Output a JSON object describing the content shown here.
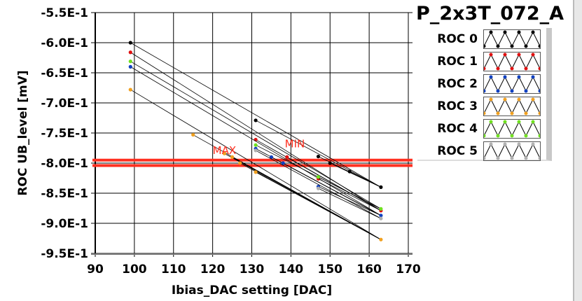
{
  "chart_data": {
    "type": "line",
    "title": "P_2x3T_072_A",
    "xlabel": "Ibias_DAC setting [DAC]",
    "ylabel": "ROC UB_level [mV]",
    "xlim": [
      90,
      170
    ],
    "ylim": [
      -0.95,
      -0.55
    ],
    "xticks": [
      90,
      100,
      110,
      120,
      130,
      140,
      150,
      160,
      170
    ],
    "xtick_labels": [
      "90",
      "100",
      "110",
      "120",
      "130",
      "140",
      "150",
      "160",
      "170"
    ],
    "yticks": [
      -0.55,
      -0.6,
      -0.65,
      -0.7,
      -0.75,
      -0.8,
      -0.85,
      -0.9,
      -0.95
    ],
    "ytick_labels": [
      "-5.5E-1",
      "-6.0E-1",
      "-6.5E-1",
      "-7.0E-1",
      "-7.5E-1",
      "-8.0E-1",
      "-8.5E-1",
      "-9.0E-1",
      "-9.5E-1"
    ],
    "grid": true,
    "legend_position": "top-right",
    "series": [
      {
        "name": "ROC 0",
        "color": "#000000",
        "x": [
          99,
          131,
          147,
          150,
          155,
          163
        ],
        "y": [
          -0.6,
          -0.729,
          -0.789,
          -0.8,
          -0.814,
          -0.84
        ]
      },
      {
        "name": "ROC 1",
        "color": "#e01010",
        "x": [
          99,
          131,
          139,
          147,
          163
        ],
        "y": [
          -0.616,
          -0.761,
          -0.79,
          -0.826,
          -0.879
        ]
      },
      {
        "name": "ROC 2",
        "color": "#1040c0",
        "x": [
          99,
          131,
          135,
          138,
          147,
          163
        ],
        "y": [
          -0.64,
          -0.776,
          -0.79,
          -0.8,
          -0.839,
          -0.887
        ]
      },
      {
        "name": "ROC 3",
        "color": "#f0a020",
        "x": [
          99,
          115,
          123,
          125,
          127,
          131,
          163
        ],
        "y": [
          -0.678,
          -0.753,
          -0.784,
          -0.79,
          -0.8,
          -0.815,
          -0.927
        ]
      },
      {
        "name": "ROC 4",
        "color": "#70e020",
        "x": [
          99,
          131,
          147,
          163
        ],
        "y": [
          -0.631,
          -0.77,
          -0.823,
          -0.876
        ]
      },
      {
        "name": "ROC 5",
        "color": "#b0b0b0",
        "x": [
          131,
          147,
          163
        ],
        "y": [
          -0.779,
          -0.842,
          -0.892
        ]
      }
    ],
    "thresholds": [
      {
        "label": "MAX",
        "y": -0.795,
        "color": "#ff3020"
      },
      {
        "label": "MIN",
        "y": -0.804,
        "color": "#ff3020"
      }
    ],
    "annotations": [
      {
        "text": "MAX",
        "x": 123,
        "y": -0.785
      },
      {
        "text": "MIN",
        "x": 141,
        "y": -0.774
      }
    ]
  }
}
